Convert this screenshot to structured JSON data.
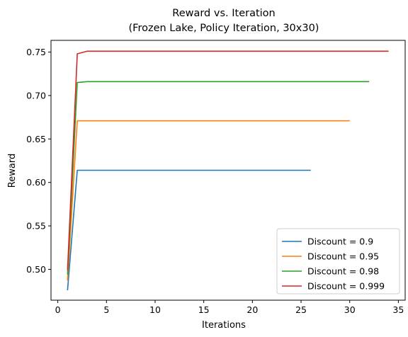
{
  "chart_data": {
    "type": "line",
    "title": "Reward vs. Iteration",
    "subtitle": "(Frozen Lake, Policy Iteration, 30x30)",
    "xlabel": "Iterations",
    "ylabel": "Reward",
    "xlim": [
      -0.7,
      35.7
    ],
    "ylim": [
      0.4645,
      0.7635
    ],
    "xticks": [
      0,
      5,
      10,
      15,
      20,
      25,
      30,
      35
    ],
    "yticks": [
      0.5,
      0.55,
      0.6,
      0.65,
      0.7,
      0.75
    ],
    "grid": false,
    "legend_position": "lower-right",
    "series": [
      {
        "name": "Discount = 0.9",
        "color": "#1f77b4",
        "x": [
          1,
          2,
          3,
          4,
          5,
          6,
          7,
          8,
          9,
          10,
          11,
          12,
          13,
          14,
          15,
          16,
          17,
          18,
          19,
          20,
          21,
          22,
          23,
          24,
          25,
          26
        ],
        "y": [
          0.476,
          0.614,
          0.614,
          0.614,
          0.614,
          0.614,
          0.614,
          0.614,
          0.614,
          0.614,
          0.614,
          0.614,
          0.614,
          0.614,
          0.614,
          0.614,
          0.614,
          0.614,
          0.614,
          0.614,
          0.614,
          0.614,
          0.614,
          0.614,
          0.614,
          0.614
        ]
      },
      {
        "name": "Discount = 0.95",
        "color": "#ff7f0e",
        "x": [
          1,
          2,
          3,
          4,
          5,
          6,
          7,
          8,
          9,
          10,
          11,
          12,
          13,
          14,
          15,
          16,
          17,
          18,
          19,
          20,
          21,
          22,
          23,
          24,
          25,
          26,
          27,
          28,
          29,
          30
        ],
        "y": [
          0.487,
          0.671,
          0.671,
          0.671,
          0.671,
          0.671,
          0.671,
          0.671,
          0.671,
          0.671,
          0.671,
          0.671,
          0.671,
          0.671,
          0.671,
          0.671,
          0.671,
          0.671,
          0.671,
          0.671,
          0.671,
          0.671,
          0.671,
          0.671,
          0.671,
          0.671,
          0.671,
          0.671,
          0.671,
          0.671
        ]
      },
      {
        "name": "Discount = 0.98",
        "color": "#2ca02c",
        "x": [
          1,
          2,
          3,
          4,
          5,
          6,
          7,
          8,
          9,
          10,
          11,
          12,
          13,
          14,
          15,
          16,
          17,
          18,
          19,
          20,
          21,
          22,
          23,
          24,
          25,
          26,
          27,
          28,
          29,
          30,
          31,
          32
        ],
        "y": [
          0.494,
          0.715,
          0.716,
          0.716,
          0.716,
          0.716,
          0.716,
          0.716,
          0.716,
          0.716,
          0.716,
          0.716,
          0.716,
          0.716,
          0.716,
          0.716,
          0.716,
          0.716,
          0.716,
          0.716,
          0.716,
          0.716,
          0.716,
          0.716,
          0.716,
          0.716,
          0.716,
          0.716,
          0.716,
          0.716,
          0.716,
          0.716
        ]
      },
      {
        "name": "Discount = 0.999",
        "color": "#d62728",
        "x": [
          1,
          2,
          3,
          4,
          5,
          6,
          7,
          8,
          9,
          10,
          11,
          12,
          13,
          14,
          15,
          16,
          17,
          18,
          19,
          20,
          21,
          22,
          23,
          24,
          25,
          26,
          27,
          28,
          29,
          30,
          31,
          32,
          33,
          34
        ],
        "y": [
          0.499,
          0.748,
          0.751,
          0.751,
          0.751,
          0.751,
          0.751,
          0.751,
          0.751,
          0.751,
          0.751,
          0.751,
          0.751,
          0.751,
          0.751,
          0.751,
          0.751,
          0.751,
          0.751,
          0.751,
          0.751,
          0.751,
          0.751,
          0.751,
          0.751,
          0.751,
          0.751,
          0.751,
          0.751,
          0.751,
          0.751,
          0.751,
          0.751,
          0.751
        ]
      }
    ]
  }
}
